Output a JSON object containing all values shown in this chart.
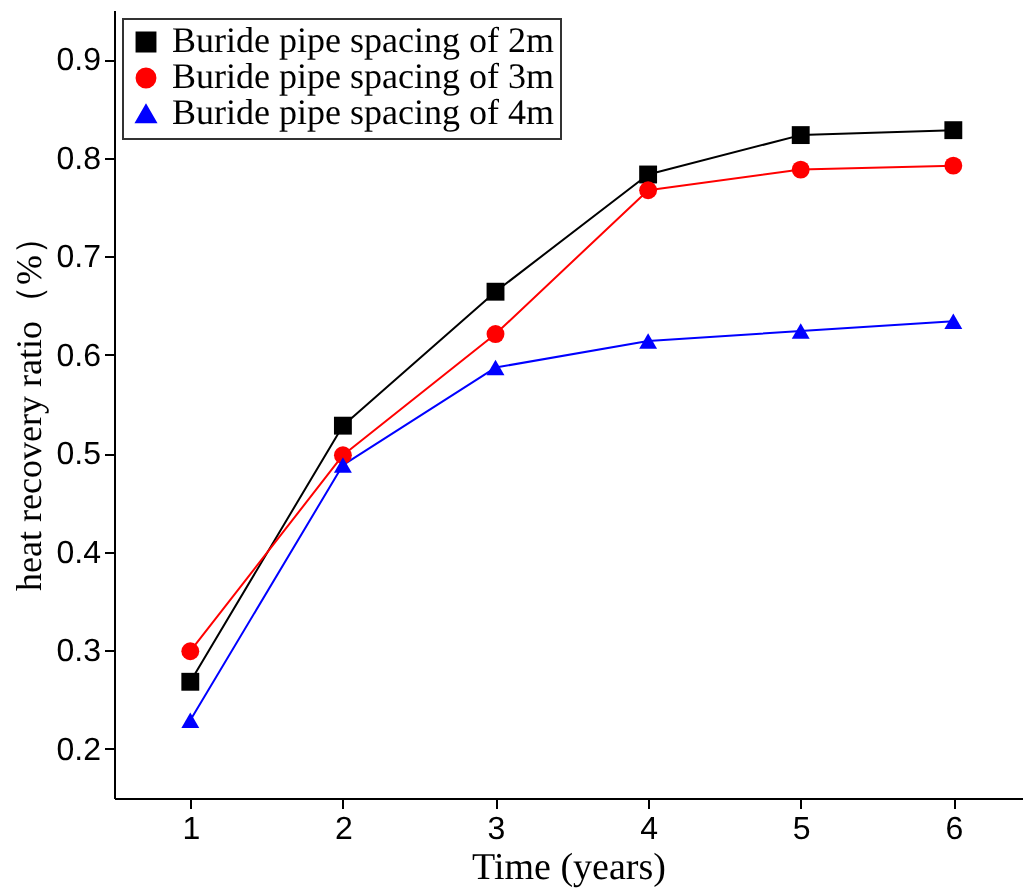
{
  "chart_data": {
    "type": "line",
    "xlabel": "Time (years)",
    "ylabel": "heat recovery ratio（%）",
    "x": [
      1,
      2,
      3,
      4,
      5,
      6
    ],
    "series": [
      {
        "name": "Buride pipe spacing of 2m",
        "color": "#000000",
        "marker": "square",
        "values": [
          0.268,
          0.528,
          0.664,
          0.783,
          0.823,
          0.828
        ]
      },
      {
        "name": "Buride pipe spacing of 3m",
        "color": "#ff0000",
        "marker": "circle",
        "values": [
          0.299,
          0.498,
          0.621,
          0.767,
          0.788,
          0.792
        ]
      },
      {
        "name": "Buride pipe spacing of 4m",
        "color": "#0000ff",
        "marker": "triangle",
        "values": [
          0.229,
          0.488,
          0.587,
          0.614,
          0.624,
          0.634
        ]
      }
    ],
    "xlim": [
      0.5,
      6.45
    ],
    "xticks": [
      1,
      2,
      3,
      4,
      5,
      6
    ],
    "ylim": [
      0.15,
      0.95
    ],
    "yticks": [
      0.2,
      0.3,
      0.4,
      0.5,
      0.6,
      0.7,
      0.8,
      0.9
    ],
    "grid": false,
    "legend": "top left",
    "line_style": "solid"
  }
}
